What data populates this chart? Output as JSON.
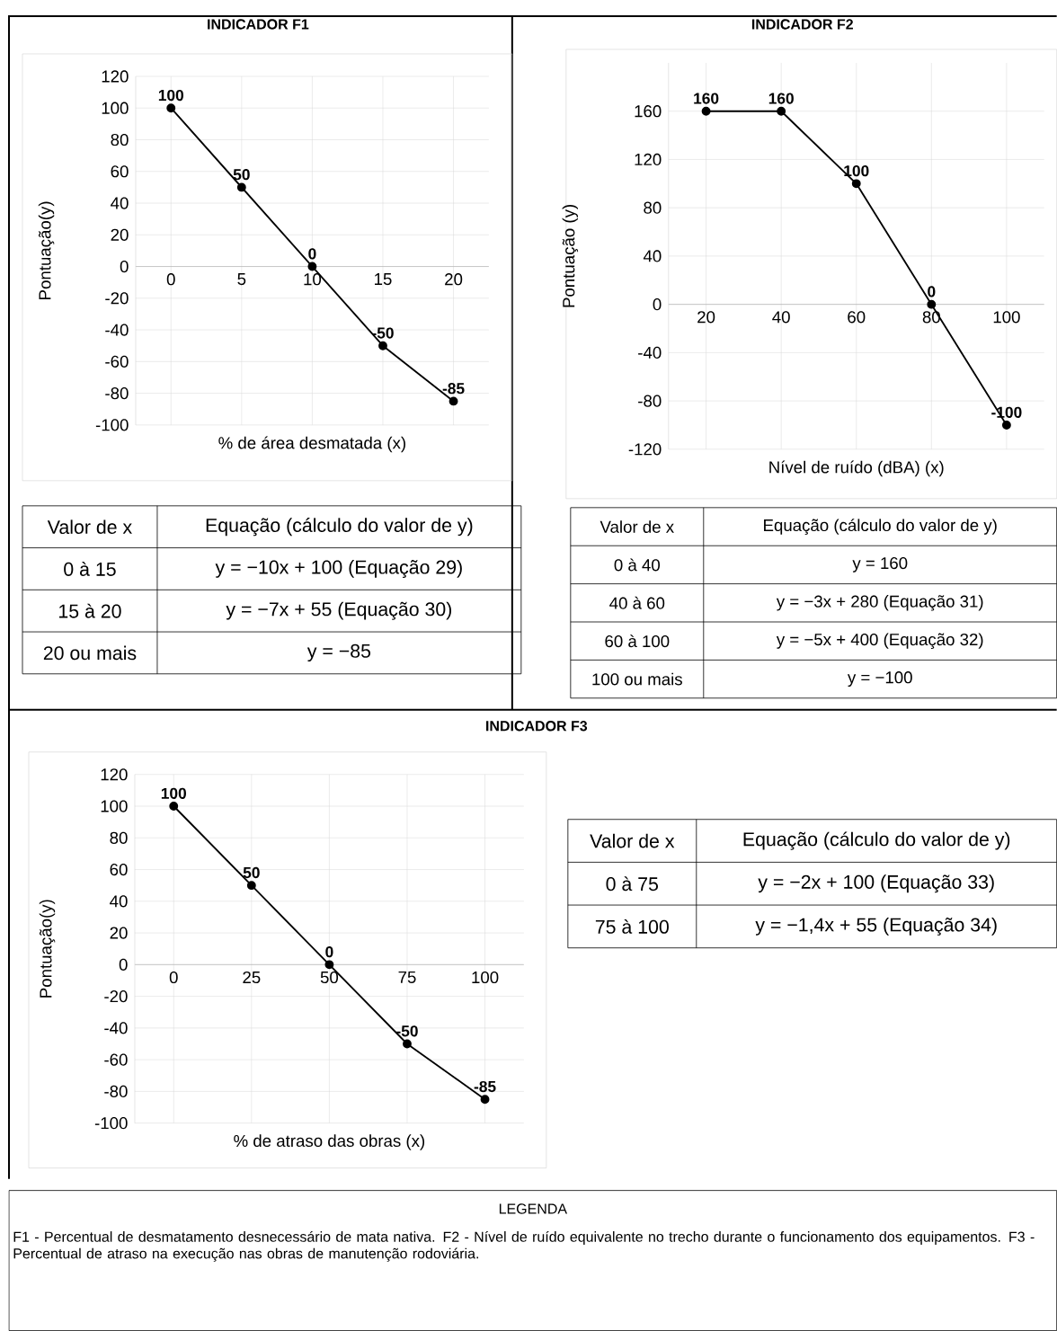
{
  "chart_data": [
    {
      "type": "line",
      "title": "INDICADOR F1",
      "xlabel": "% de área desmatada (x)",
      "ylabel": "Pontuação(y)",
      "x": [
        0,
        5,
        10,
        15,
        20
      ],
      "values": [
        100,
        50,
        0,
        -50,
        -85
      ],
      "color": "#000000",
      "xlim": [
        -2.5,
        22.5
      ],
      "ylim": [
        -100,
        120
      ],
      "xticks": [
        0,
        5,
        10,
        15,
        20
      ],
      "yticks": [
        -100,
        -80,
        -60,
        -40,
        -20,
        0,
        20,
        40,
        60,
        80,
        100,
        120
      ],
      "grid": true,
      "marker": "circle",
      "line_style": "solid",
      "data_labels": true
    },
    {
      "type": "other",
      "annotations": [
        "Valor de x",
        "Equação (cálculo do valor de y)",
        "0 à 15",
        "y = −10x + 100 (Equação 29)",
        "15 à 20",
        "y = −7x + 55 (Equação 30)",
        "20 ou mais",
        "y = −85"
      ]
    },
    {
      "type": "line",
      "title": "INDICADOR F2",
      "xlabel": "Nível de ruído (dBA) (x)",
      "ylabel": "Pontuação (y)",
      "x": [
        20,
        40,
        60,
        80,
        100
      ],
      "values": [
        160,
        160,
        100,
        0,
        -100
      ],
      "color": "#000000",
      "xlim": [
        10,
        110
      ],
      "ylim": [
        -120,
        200
      ],
      "xticks": [
        20,
        40,
        60,
        80,
        100
      ],
      "yticks": [
        -120,
        -80,
        -40,
        0,
        40,
        80,
        120,
        160
      ],
      "grid": true,
      "marker": "circle",
      "line_style": "solid",
      "data_labels": true
    },
    {
      "type": "other",
      "annotations": [
        "Valor de x",
        "Equação (cálculo do valor de y)",
        "0 à 40",
        "y = 160",
        "40 à 60",
        "y = −3x + 280 (Equação 31)",
        "60 à 100",
        "y = −5x + 400 (Equação 32)",
        "100 ou mais",
        "y = −100"
      ]
    },
    {
      "type": "line",
      "title": "INDICADOR F3",
      "xlabel": "% de atraso das obras (x)",
      "ylabel": "Pontuação(y)",
      "x": [
        0,
        25,
        50,
        75,
        100
      ],
      "values": [
        100,
        50,
        0,
        -50,
        -85
      ],
      "color": "#000000",
      "xlim": [
        -12.5,
        112.5
      ],
      "ylim": [
        -100,
        120
      ],
      "xticks": [
        0,
        25,
        50,
        75,
        100
      ],
      "yticks": [
        -100,
        -80,
        -60,
        -40,
        -20,
        0,
        20,
        40,
        60,
        80,
        100,
        120
      ],
      "grid": true,
      "marker": "circle",
      "line_style": "solid",
      "data_labels": true
    },
    {
      "type": "other",
      "annotations": [
        "Valor de x",
        "Equação (cálculo do valor de y)",
        "0 à 75",
        "y = −2x + 100 (Equação 33)",
        "75 à 100",
        "y = −1,4x + 55 (Equação 34)"
      ]
    },
    {
      "type": "other",
      "title": "LEGENDA",
      "annotations": [
        "F1 - Percentual de desmatamento desnecessário de mata nativa. F2 - Nível de ruído equivalente no trecho durante o funcionamento dos equipamentos. F3 - Percentual de atraso na execução nas obras de manutenção rodoviária."
      ]
    }
  ]
}
